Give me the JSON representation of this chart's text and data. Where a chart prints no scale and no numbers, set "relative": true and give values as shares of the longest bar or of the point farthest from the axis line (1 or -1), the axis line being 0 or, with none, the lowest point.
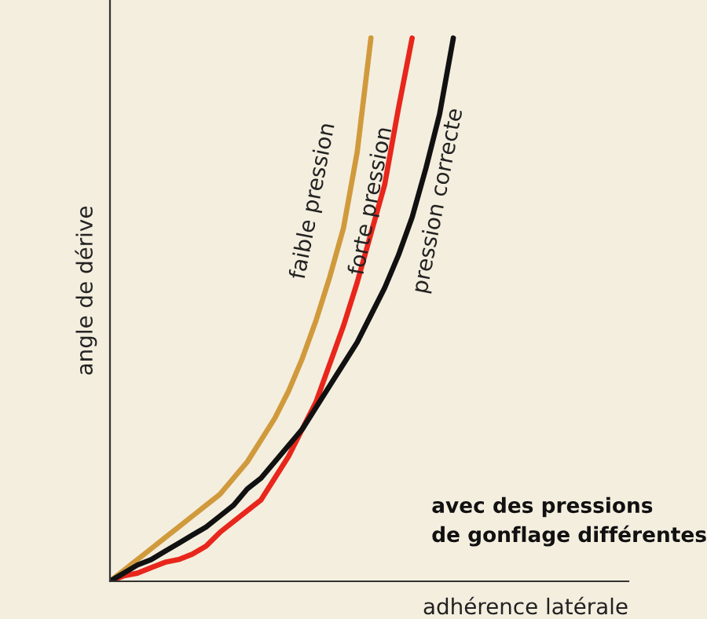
{
  "chart_data": {
    "type": "line",
    "relative": true,
    "xlabel": "adhérence latérale",
    "ylabel": "angle de dérive",
    "annotations": [
      "avec des pressions\nde gonflage différentes"
    ],
    "categories": [
      null,
      null,
      null,
      null,
      null,
      null,
      null,
      null,
      null,
      null,
      null,
      null,
      null,
      null,
      null,
      null,
      null,
      null,
      null,
      null,
      null,
      null,
      null,
      null,
      null,
      null
    ],
    "series": [
      {
        "name": "faible pression",
        "color": "#d09a3c",
        "values": [
          0,
          0.02,
          0.04,
          0.06,
          0.08,
          0.1,
          0.12,
          0.14,
          0.16,
          0.19,
          0.22,
          0.26,
          0.3,
          0.35,
          0.41,
          0.48,
          0.56,
          0.65,
          0.79,
          1.0,
          null,
          null,
          null,
          null,
          null,
          null
        ]
      },
      {
        "name": "forte pression",
        "color": "#e8261c",
        "values": [
          0,
          0.01,
          0.015,
          0.025,
          0.035,
          0.04,
          0.05,
          0.065,
          0.09,
          0.11,
          0.13,
          0.15,
          0.19,
          0.23,
          0.28,
          0.33,
          0.4,
          0.47,
          0.55,
          0.64,
          0.73,
          0.87,
          1.0,
          null,
          null,
          null
        ]
      },
      {
        "name": "pression correcte",
        "color": "#111111",
        "values": [
          0,
          0.015,
          0.03,
          0.04,
          0.055,
          0.07,
          0.085,
          0.1,
          0.12,
          0.14,
          0.17,
          0.19,
          0.22,
          0.25,
          0.28,
          0.32,
          0.36,
          0.4,
          0.44,
          0.49,
          0.54,
          0.6,
          0.67,
          0.76,
          0.86,
          1.0
        ]
      }
    ],
    "legend": false
  }
}
